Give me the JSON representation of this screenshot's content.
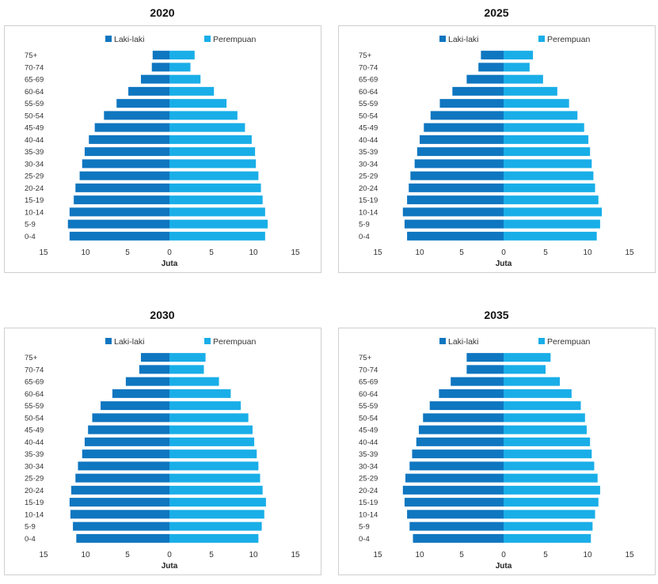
{
  "colors": {
    "male": "#0f76c0",
    "female": "#19aee8"
  },
  "chart_data": [
    {
      "type": "bar",
      "title": "2020",
      "xlabel": "Juta",
      "xlim": [
        -15,
        15
      ],
      "xticks": [
        "15",
        "10",
        "5",
        "0",
        "5",
        "10",
        "15"
      ],
      "categories": [
        "75+",
        "70-74",
        "65-69",
        "60-64",
        "55-59",
        "50-54",
        "45-49",
        "40-44",
        "35-39",
        "30-34",
        "25-29",
        "20-24",
        "15-19",
        "10-14",
        "5-9",
        "0-4"
      ],
      "series": [
        {
          "name": "Laki-laki",
          "values": [
            2.0,
            2.1,
            3.4,
            4.9,
            6.3,
            7.8,
            8.9,
            9.6,
            10.1,
            10.4,
            10.7,
            11.2,
            11.4,
            11.9,
            12.1,
            11.9
          ]
        },
        {
          "name": "Perempuan",
          "values": [
            3.0,
            2.5,
            3.7,
            5.3,
            6.8,
            8.1,
            9.0,
            9.8,
            10.2,
            10.3,
            10.6,
            10.9,
            11.1,
            11.4,
            11.7,
            11.4
          ]
        }
      ]
    },
    {
      "type": "bar",
      "title": "2025",
      "xlabel": "Juta",
      "xlim": [
        -15,
        15
      ],
      "xticks": [
        "15",
        "10",
        "5",
        "0",
        "5",
        "10",
        "15"
      ],
      "categories": [
        "75+",
        "70-74",
        "65-69",
        "60-64",
        "55-59",
        "50-54",
        "45-49",
        "40-44",
        "35-39",
        "30-34",
        "25-29",
        "20-24",
        "15-19",
        "10-14",
        "5-9",
        "0-4"
      ],
      "series": [
        {
          "name": "Laki-laki",
          "values": [
            2.7,
            3.0,
            4.4,
            6.1,
            7.6,
            8.7,
            9.5,
            10.0,
            10.3,
            10.6,
            11.1,
            11.3,
            11.5,
            12.0,
            11.8,
            11.5
          ]
        },
        {
          "name": "Perempuan",
          "values": [
            3.5,
            3.1,
            4.7,
            6.4,
            7.8,
            8.8,
            9.6,
            10.1,
            10.3,
            10.5,
            10.7,
            10.9,
            11.3,
            11.7,
            11.5,
            11.1
          ]
        }
      ]
    },
    {
      "type": "bar",
      "title": "2030",
      "xlabel": "Juta",
      "xlim": [
        -15,
        15
      ],
      "xticks": [
        "15",
        "10",
        "5",
        "0",
        "5",
        "10",
        "15"
      ],
      "categories": [
        "75+",
        "70-74",
        "65-69",
        "60-64",
        "55-59",
        "50-54",
        "45-49",
        "40-44",
        "35-39",
        "30-34",
        "25-29",
        "20-24",
        "15-19",
        "10-14",
        "5-9",
        "0-4"
      ],
      "series": [
        {
          "name": "Laki-laki",
          "values": [
            3.4,
            3.6,
            5.2,
            6.8,
            8.2,
            9.2,
            9.7,
            10.1,
            10.4,
            10.9,
            11.2,
            11.7,
            11.9,
            11.8,
            11.5,
            11.1
          ]
        },
        {
          "name": "Perempuan",
          "values": [
            4.3,
            4.1,
            5.9,
            7.3,
            8.5,
            9.4,
            9.9,
            10.1,
            10.4,
            10.6,
            10.8,
            11.1,
            11.5,
            11.3,
            11.0,
            10.6
          ]
        }
      ]
    },
    {
      "type": "bar",
      "title": "2035",
      "xlabel": "Juta",
      "xlim": [
        -15,
        15
      ],
      "xticks": [
        "15",
        "10",
        "5",
        "0",
        "5",
        "10",
        "15"
      ],
      "categories": [
        "75+",
        "70-74",
        "65-69",
        "60-64",
        "55-59",
        "50-54",
        "45-49",
        "40-44",
        "35-39",
        "30-34",
        "25-29",
        "20-24",
        "15-19",
        "10-14",
        "5-9",
        "0-4"
      ],
      "series": [
        {
          "name": "Laki-laki",
          "values": [
            4.4,
            4.4,
            6.3,
            7.7,
            8.8,
            9.6,
            10.1,
            10.4,
            10.9,
            11.2,
            11.7,
            12.0,
            11.8,
            11.5,
            11.2,
            10.8
          ]
        },
        {
          "name": "Perempuan",
          "values": [
            5.6,
            5.0,
            6.7,
            8.1,
            9.2,
            9.7,
            9.9,
            10.3,
            10.5,
            10.8,
            11.2,
            11.5,
            11.3,
            10.9,
            10.6,
            10.4
          ]
        }
      ]
    }
  ]
}
